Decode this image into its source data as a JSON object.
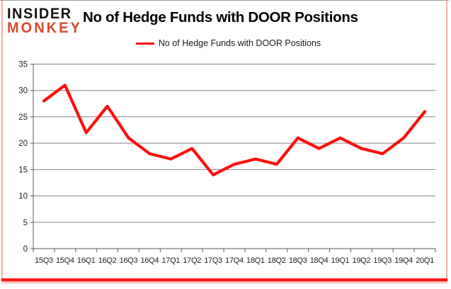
{
  "brand": {
    "name_line1": "INSIDER",
    "name_line2": "MONKEY",
    "accent_color": "#d8492c"
  },
  "title": "No of Hedge Funds with DOOR Positions",
  "legend": {
    "label": "No of Hedge Funds with DOOR Positions"
  },
  "chart_data": {
    "type": "line",
    "title": "No of Hedge Funds with DOOR Positions",
    "categories": [
      "15Q3",
      "15Q4",
      "16Q1",
      "16Q2",
      "16Q3",
      "16Q4",
      "17Q1",
      "17Q2",
      "17Q3",
      "17Q4",
      "18Q1",
      "18Q2",
      "18Q3",
      "18Q4",
      "19Q1",
      "19Q2",
      "19Q3",
      "19Q4",
      "20Q1"
    ],
    "series": [
      {
        "name": "No of Hedge Funds with DOOR Positions",
        "color": "#fe0d0d",
        "values": [
          28,
          31,
          22,
          27,
          21,
          18,
          17,
          19,
          14,
          16,
          17,
          16,
          21,
          19,
          21,
          19,
          18,
          21,
          26
        ]
      }
    ],
    "ylim": [
      0,
      35
    ],
    "yticks": [
      0,
      5,
      10,
      15,
      20,
      25,
      30,
      35
    ],
    "grid": true,
    "legend_position": "top-center",
    "xlabel": "",
    "ylabel": ""
  },
  "colors": {
    "line": "#fe0d0d",
    "grid": "#848484",
    "axis": "#595959",
    "tick_label": "#212121",
    "frame_border": "#9f9f9f",
    "bottom_bar": "#fc1812",
    "side_edge": "#f0aca6"
  }
}
